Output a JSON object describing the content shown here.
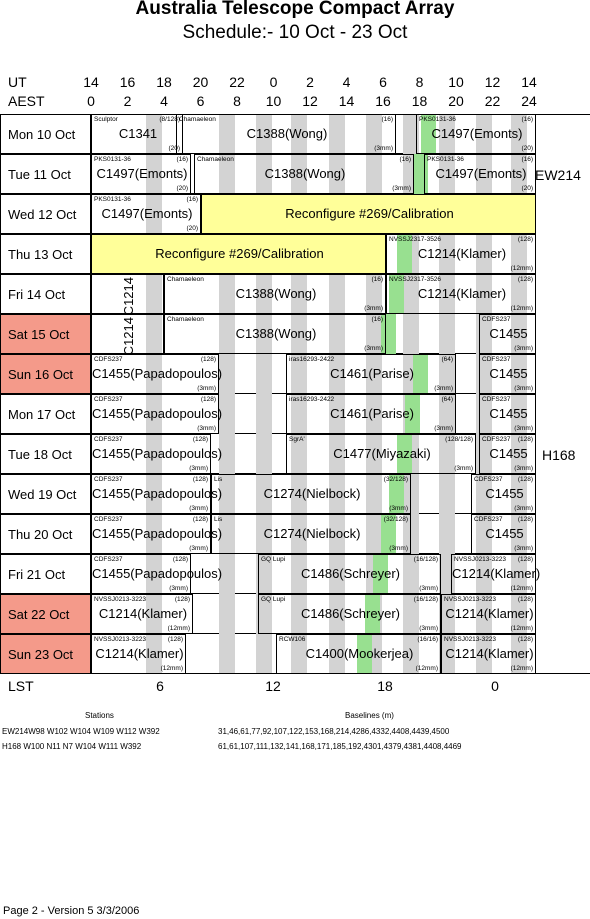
{
  "title": "Australia Telescope Compact Array",
  "subtitle": "Schedule:- 10 Oct - 23 Oct",
  "axis": {
    "ut_label": "UT",
    "aest_label": "AEST",
    "lst_label": "LST",
    "ut_ticks": [
      "14",
      "16",
      "18",
      "20",
      "22",
      "0",
      "2",
      "4",
      "6",
      "8",
      "10",
      "12",
      "14"
    ],
    "aest_ticks": [
      "0",
      "2",
      "4",
      "6",
      "8",
      "10",
      "12",
      "14",
      "16",
      "18",
      "20",
      "22",
      "24"
    ],
    "lst_ticks": [
      "6",
      "12",
      "18",
      "0"
    ]
  },
  "days": [
    {
      "label": "Mon  10 Oct",
      "weekend": false
    },
    {
      "label": "Tue  11 Oct",
      "weekend": false
    },
    {
      "label": "Wed  12 Oct",
      "weekend": false
    },
    {
      "label": "Thu  13 Oct",
      "weekend": false
    },
    {
      "label": "Fri  14 Oct",
      "weekend": false
    },
    {
      "label": "Sat  15 Oct",
      "weekend": true
    },
    {
      "label": "Sun  16 Oct",
      "weekend": true
    },
    {
      "label": "Mon  17 Oct",
      "weekend": false
    },
    {
      "label": "Tue  18 Oct",
      "weekend": false
    },
    {
      "label": "Wed  19 Oct",
      "weekend": false
    },
    {
      "label": "Thu  20 Oct",
      "weekend": false
    },
    {
      "label": "Fri  21 Oct",
      "weekend": false
    },
    {
      "label": "Sat  22 Oct",
      "weekend": true
    },
    {
      "label": "Sun  23 Oct",
      "weekend": true
    }
  ],
  "configs": [
    "EW214",
    "H168"
  ],
  "colors": {
    "weekend": "#f49a8a",
    "green": "#98e090",
    "yellow": "#ffff99",
    "grey": "#d3d3d3"
  },
  "blocks": [
    {
      "row": 0,
      "x0": 0,
      "x1": 92,
      "main": "C1341",
      "top": "Sculptor",
      "tr": "(8/128)",
      "br": "(20)"
    },
    {
      "row": 0,
      "x0": 85,
      "x1": 305,
      "main": "C1388(Wong)",
      "top": "Chamaeleon",
      "tr": "(16)",
      "br": "(3mm)"
    },
    {
      "row": 0,
      "x0": 325,
      "x1": 445,
      "main": "C1497(Emonts)",
      "top": "PKS0131-36",
      "tr": "(16)",
      "br": "(20)"
    },
    {
      "row": 1,
      "x0": 0,
      "x1": 100,
      "main": "C1497(Emonts)",
      "top": "PKS0131-36",
      "tr": "(16)",
      "br": "(20)"
    },
    {
      "row": 1,
      "x0": 103,
      "x1": 323,
      "main": "C1388(Wong)",
      "top": "Chamaeleon",
      "tr": "(16)",
      "br": "(3mm)"
    },
    {
      "row": 1,
      "x0": 333,
      "x1": 445,
      "main": "C1497(Emonts)",
      "top": "PKS0131-36",
      "tr": "(16)",
      "br": "(20)"
    },
    {
      "row": 2,
      "x0": 0,
      "x1": 110,
      "main": "C1497(Emonts)",
      "top": "PKS0131-36",
      "tr": "(16)",
      "br": "(20)"
    },
    {
      "row": 2,
      "x0": 110,
      "x1": 445,
      "main": "Reconfigure #269/Calibration",
      "yellow": true
    },
    {
      "row": 3,
      "x0": 0,
      "x1": 295,
      "main": "Reconfigure #269/Calibration",
      "yellow": true
    },
    {
      "row": 3,
      "x0": 295,
      "x1": 445,
      "main": "C1214(Klamer)",
      "top": "NVSSJ2317-3526",
      "tr": "(128)",
      "br": "(12mm)"
    },
    {
      "row": 4,
      "x0": 0,
      "x1": 73,
      "main": "C1214",
      "vertical": true
    },
    {
      "row": 4,
      "x0": 73,
      "x1": 295,
      "main": "C1388(Wong)",
      "top": "Chamaeleon",
      "tr": "(16)",
      "br": "(3mm)"
    },
    {
      "row": 4,
      "x0": 295,
      "x1": 445,
      "main": "C1214(Klamer)",
      "top": "NVSSJ2317-3526",
      "tr": "(128)",
      "br": "(12mm)"
    },
    {
      "row": 5,
      "x0": 0,
      "x1": 73,
      "main": "C1214",
      "vertical": true
    },
    {
      "row": 5,
      "x0": 73,
      "x1": 295,
      "main": "C1388(Wong)",
      "top": "Chamaeleon",
      "tr": "(16)",
      "br": "(3mm)"
    },
    {
      "row": 5,
      "x0": 388,
      "x1": 445,
      "main": "C1455",
      "top": "CDFS237",
      "tr": "",
      "br": "(3mm)"
    },
    {
      "row": 6,
      "x0": 0,
      "x1": 128,
      "main": "C1455(Papadopoulos)",
      "top": "CDFS237",
      "tr": "(128)",
      "br": "(3mm)"
    },
    {
      "row": 6,
      "x0": 195,
      "x1": 365,
      "main": "C1461(Parise)",
      "top": "iras16293-2422",
      "tr": "(64)",
      "br": "(3mm)"
    },
    {
      "row": 6,
      "x0": 388,
      "x1": 445,
      "main": "C1455",
      "top": "CDFS237",
      "tr": "",
      "br": "(3mm)"
    },
    {
      "row": 7,
      "x0": 0,
      "x1": 128,
      "main": "C1455(Papadopoulos)",
      "top": "CDFS237",
      "tr": "(128)",
      "br": "(3mm)"
    },
    {
      "row": 7,
      "x0": 195,
      "x1": 365,
      "main": "C1461(Parise)",
      "top": "iras16293-2422",
      "tr": "(64)",
      "br": "(3mm)"
    },
    {
      "row": 7,
      "x0": 388,
      "x1": 445,
      "main": "C1455",
      "top": "CDFS237",
      "tr": "",
      "br": "(3mm)"
    },
    {
      "row": 8,
      "x0": 0,
      "x1": 120,
      "main": "C1455(Papadopoulos)",
      "top": "CDFS237",
      "tr": "(128)",
      "br": "(3mm)"
    },
    {
      "row": 8,
      "x0": 195,
      "x1": 385,
      "main": "C1477(Miyazaki)",
      "top": "SgrA'",
      "tr": "(128/128)",
      "br": "(3mm)"
    },
    {
      "row": 8,
      "x0": 388,
      "x1": 445,
      "main": "C1455",
      "top": "CDFS237",
      "tr": "(128)",
      "br": "(3mm)"
    },
    {
      "row": 9,
      "x0": 0,
      "x1": 120,
      "main": "C1455(Papadopoulos)",
      "top": "CDFS237",
      "tr": "(128)",
      "br": "(3mm)"
    },
    {
      "row": 9,
      "x0": 120,
      "x1": 320,
      "main": "C1274(Nielbock)",
      "top": "Lis",
      "tr": "(32/128)",
      "br": "(3mm)"
    },
    {
      "row": 9,
      "x0": 380,
      "x1": 445,
      "main": "C1455",
      "top": "CDFS237",
      "tr": "(128)",
      "br": "(3mm)"
    },
    {
      "row": 10,
      "x0": 0,
      "x1": 120,
      "main": "C1455(Papadopoulos)",
      "top": "CDFS237",
      "tr": "(128)",
      "br": "(3mm)"
    },
    {
      "row": 10,
      "x0": 120,
      "x1": 320,
      "main": "C1274(Nielbock)",
      "top": "Lis",
      "tr": "(32/128)",
      "br": "(3mm)"
    },
    {
      "row": 10,
      "x0": 380,
      "x1": 445,
      "main": "C1455",
      "top": "CDFS237",
      "tr": "(128)",
      "br": "(3mm)"
    },
    {
      "row": 11,
      "x0": 0,
      "x1": 100,
      "main": "C1455(Papadopoulos)",
      "top": "CDFS237",
      "tr": "(128)",
      "br": "(3mm)"
    },
    {
      "row": 11,
      "x0": 167,
      "x1": 350,
      "main": "C1486(Schreyer)",
      "top": "GQ Lupi",
      "tr": "(16/128)",
      "br": "(3mm)"
    },
    {
      "row": 11,
      "x0": 360,
      "x1": 445,
      "main": "C1214(Klamer)",
      "top": "NVSSJ0213-3223",
      "tr": "(128)",
      "br": "(12mm)"
    },
    {
      "row": 12,
      "x0": 0,
      "x1": 102,
      "main": "C1214(Klamer)",
      "top": "NVSSJ0213-3223",
      "tr": "(128)",
      "br": "(12mm)"
    },
    {
      "row": 12,
      "x0": 167,
      "x1": 350,
      "main": "C1486(Schreyer)",
      "top": "GQ Lupi",
      "tr": "(16/128)",
      "br": "(3mm)"
    },
    {
      "row": 12,
      "x0": 350,
      "x1": 445,
      "main": "C1214(Klamer)",
      "top": "NVSSJ0213-3223",
      "tr": "(128)",
      "br": "(12mm)"
    },
    {
      "row": 13,
      "x0": 0,
      "x1": 95,
      "main": "C1214(Klamer)",
      "top": "NVSSJ0213-3223",
      "tr": "(128)",
      "br": "(12mm)"
    },
    {
      "row": 13,
      "x0": 185,
      "x1": 350,
      "main": "C1400(Mookerjea)",
      "top": "RCW106",
      "tr": "(16/16)",
      "br": "(12mm)"
    },
    {
      "row": 13,
      "x0": 350,
      "x1": 445,
      "main": "C1214(Klamer)",
      "top": "NVSSJ0213-3223",
      "tr": "(128)",
      "br": "(12mm)"
    }
  ],
  "stations_title": "Stations",
  "baselines_title": "Baselines (m)",
  "config_rows": [
    {
      "stations": "EW214W98 W102 W104 W109 W112 W392",
      "baselines": "31,46,61,77,92,107,122,153,168,214,4286,4332,4408,4439,4500"
    },
    {
      "stations": "H168  W100 N11 N7 W104 W111 W392",
      "baselines": "61,61,107,111,132,141,168,171,185,192,4301,4379,4381,4408,4469"
    }
  ],
  "footer": "Page 2 - Version 5  3/3/2006"
}
